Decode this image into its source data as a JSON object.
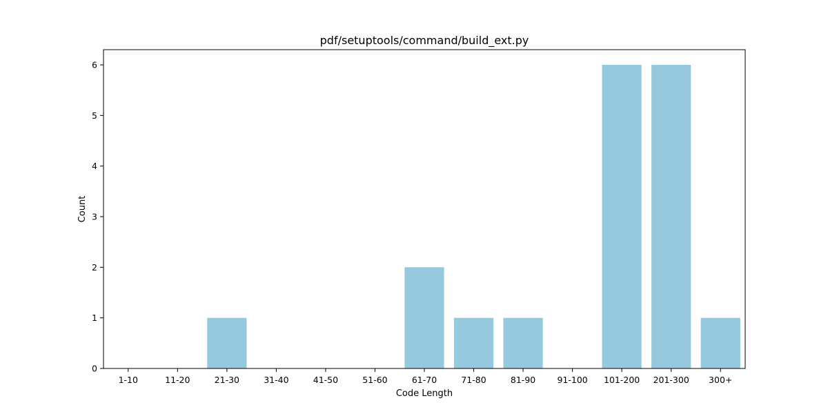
{
  "chart_data": {
    "type": "bar",
    "title": "pdf/setuptools/command/build_ext.py",
    "xlabel": "Code Length",
    "ylabel": "Count",
    "categories": [
      "1-10",
      "11-20",
      "21-30",
      "31-40",
      "41-50",
      "51-60",
      "61-70",
      "71-80",
      "81-90",
      "91-100",
      "101-200",
      "201-300",
      "300+"
    ],
    "values": [
      0,
      0,
      1,
      0,
      0,
      0,
      2,
      1,
      1,
      0,
      6,
      6,
      1
    ],
    "yticks": [
      "0",
      "1",
      "2",
      "3",
      "4",
      "5",
      "6"
    ],
    "ylim": [
      0,
      6.3
    ],
    "grid": false,
    "bar_color": "#96c9de"
  }
}
